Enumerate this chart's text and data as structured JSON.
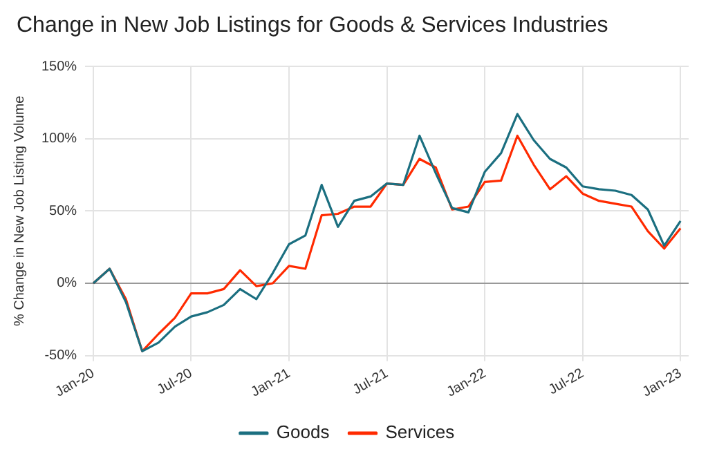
{
  "chart_data": {
    "type": "line",
    "title": "Change in New Job Listings for Goods & Services Industries",
    "ylabel": "% Change in New Job Listing Volume",
    "categories": [
      "Jan-20",
      null,
      null,
      null,
      null,
      null,
      "Jul-20",
      null,
      null,
      null,
      null,
      null,
      "Jan-21",
      null,
      null,
      null,
      null,
      null,
      "Jul-21",
      null,
      null,
      null,
      null,
      null,
      "Jan-22",
      null,
      null,
      null,
      null,
      null,
      "Jul-22",
      null,
      null,
      null,
      null,
      null,
      "Jan-23"
    ],
    "series": [
      {
        "name": "Goods",
        "color": "#1b6f80",
        "values": [
          0,
          10,
          -13,
          -47,
          -41,
          -30,
          -23,
          -20,
          -15,
          -4,
          -11,
          7,
          27,
          33,
          68,
          39,
          57,
          60,
          69,
          68,
          102,
          76,
          52,
          49,
          77,
          90,
          117,
          99,
          86,
          80,
          67,
          65,
          64,
          61,
          51,
          26,
          43
        ]
      },
      {
        "name": "Services",
        "color": "#ff2a00",
        "values": [
          0,
          10,
          -11,
          -47,
          -35,
          -24,
          -7,
          -7,
          -4,
          9,
          -2,
          0,
          12,
          10,
          47,
          48,
          53,
          53,
          69,
          68,
          86,
          80,
          51,
          53,
          70,
          71,
          102,
          82,
          65,
          74,
          62,
          57,
          55,
          53,
          36,
          24,
          38
        ]
      }
    ],
    "ylim": [
      -50,
      150
    ],
    "yticks": [
      {
        "value": -50,
        "label": "-50%"
      },
      {
        "value": 0,
        "label": "0%"
      },
      {
        "value": 50,
        "label": "50%"
      },
      {
        "value": 100,
        "label": "100%"
      },
      {
        "value": 150,
        "label": "150%"
      }
    ],
    "grid": true,
    "legend": "bottom",
    "marker": "none",
    "line_style": "solid"
  }
}
